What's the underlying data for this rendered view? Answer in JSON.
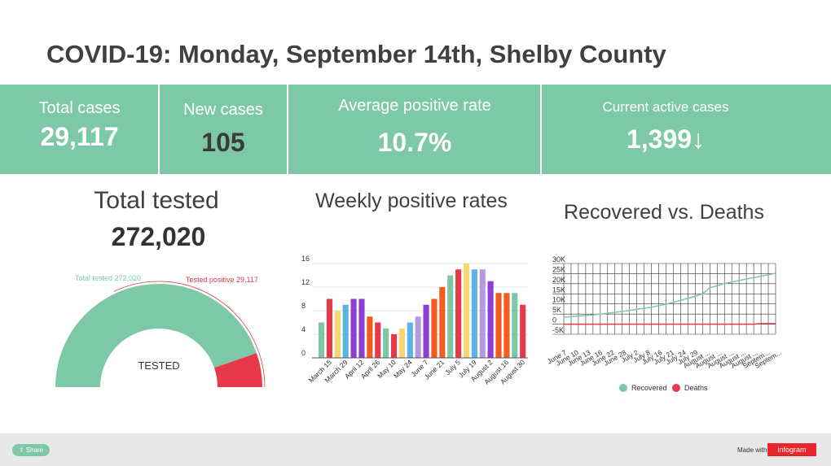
{
  "title": "COVID-19: Monday, September 14th, Shelby County",
  "stats": {
    "total_cases": {
      "label": "Total cases",
      "value": "29,117"
    },
    "new_cases": {
      "label": "New cases",
      "value": "105"
    },
    "avg_positive_rate": {
      "label": "Average positive rate",
      "value": "10.7%"
    },
    "active_cases": {
      "label": "Current active cases",
      "value": "1,399↓"
    }
  },
  "tested": {
    "title": "Total tested",
    "value": "272,020"
  },
  "colors": {
    "band": "#7dc8a6",
    "green": "#7dc8a6",
    "red": "#e8394b",
    "orange": "#f25c1f",
    "yellow": "#f7d774",
    "blue": "#5ab4e5",
    "purple": "#8e3fd1",
    "darkred": "#e8394b",
    "teal": "#7dc8a6",
    "lavender": "#b49be0",
    "brand": "#e8262c"
  },
  "chart_data": [
    {
      "type": "pie",
      "variant": "semicircle-gauge",
      "title": "",
      "center_label": "TESTED",
      "slices": [
        {
          "label": "Total tested 272,020",
          "value": 272020,
          "color": "#7dc8a6"
        },
        {
          "label": "Tested positive 29,117",
          "value": 29117,
          "color": "#e8394b"
        }
      ]
    },
    {
      "type": "bar",
      "title": "Weekly positive rates",
      "categories": [
        "March 8",
        "March 15",
        "March 22",
        "March 29",
        "April 5",
        "April 12",
        "April 19",
        "April 26",
        "May 3",
        "May 10",
        "May 17",
        "May 24",
        "May 31",
        "June 7",
        "June 14",
        "June 21",
        "June 28",
        "July 5",
        "July 12",
        "July 19",
        "July 26",
        "August 2",
        "August 9",
        "August 16",
        "August 23",
        "August 30"
      ],
      "tick_labels": [
        "March 15",
        "March 29",
        "April 12",
        "April 26",
        "May 10",
        "May 24",
        "June 7",
        "June 21",
        "July 5",
        "July 19",
        "August 2",
        "August 16",
        "August 30"
      ],
      "values": [
        6,
        10,
        8,
        9,
        10,
        10,
        7,
        6,
        5,
        4,
        5,
        6,
        7,
        9,
        10,
        12,
        14,
        15,
        16,
        15,
        15,
        13,
        11,
        11,
        11,
        9
      ],
      "bar_colors": [
        "#7dc8a6",
        "#e8394b",
        "#f7d774",
        "#5ab4e5",
        "#8e3fd1",
        "#8e3fd1",
        "#f25c1f",
        "#e8394b",
        "#7dc8a6",
        "#e8394b",
        "#f7d774",
        "#5ab4e5",
        "#b49be0",
        "#8e3fd1",
        "#f25c1f",
        "#f25c1f",
        "#7dc8a6",
        "#e8394b",
        "#f7d774",
        "#5ab4e5",
        "#b49be0",
        "#8e3fd1",
        "#f25c1f",
        "#f25c1f",
        "#7dc8a6",
        "#e8394b"
      ],
      "yticks": [
        0,
        4,
        8,
        12,
        16
      ],
      "ylim": [
        0,
        16
      ],
      "xlabel": "",
      "ylabel": ""
    },
    {
      "type": "line",
      "title": "Recovered vs. Deaths",
      "x": [
        "June 7",
        "June 10",
        "June 13",
        "June 16",
        "June 19",
        "June 22",
        "June 25",
        "June 28",
        "July 1",
        "July 2",
        "July 5",
        "July 8",
        "July 11",
        "July 14",
        "July 16",
        "July 19",
        "July 21",
        "July 24",
        "July 27",
        "July 29",
        "August ...",
        "August ...",
        "August ...",
        "August ...",
        "August ...",
        "August ...",
        "August ...",
        "Septem...",
        "Septem...",
        "Septem..."
      ],
      "xtick_labels": [
        "June 7",
        "June 10",
        "June 13",
        "June 16",
        "June 22",
        "June 28",
        "July 2",
        "July 8",
        "July 16",
        "July 21",
        "July 24",
        "July 29",
        "August ...",
        "August ...",
        "August ...",
        "August ...",
        "August ...",
        "Septem...",
        "Septem..."
      ],
      "yticks": [
        -5000,
        0,
        5000,
        10000,
        15000,
        20000,
        25000,
        30000
      ],
      "ytick_labels": [
        "-5K",
        "0",
        "5K",
        "10K",
        "15K",
        "20K",
        "25K",
        "30K"
      ],
      "ylim": [
        -5000,
        30000
      ],
      "series": [
        {
          "name": "Recovered",
          "color": "#7dc8a6",
          "values": [
            3500,
            3700,
            4000,
            4300,
            4600,
            5000,
            5400,
            5800,
            6300,
            6800,
            7300,
            7800,
            8400,
            9100,
            9900,
            10800,
            11800,
            12800,
            13800,
            15000,
            18000,
            19000,
            20000,
            20800,
            21600,
            22300,
            23000,
            23700,
            24400,
            25200
          ]
        },
        {
          "name": "Deaths",
          "color": "#e8394b",
          "values": [
            0,
            0,
            0,
            0,
            0,
            0,
            0,
            0,
            0,
            0,
            0,
            0,
            0,
            0,
            0,
            0,
            0,
            0,
            0,
            0,
            0,
            0,
            0,
            0,
            0,
            0,
            0,
            300,
            300,
            300
          ]
        }
      ],
      "legend_position": "bottom"
    }
  ],
  "footer": {
    "share_label": "Share",
    "made_with": "Made with",
    "brand": "infogram"
  }
}
